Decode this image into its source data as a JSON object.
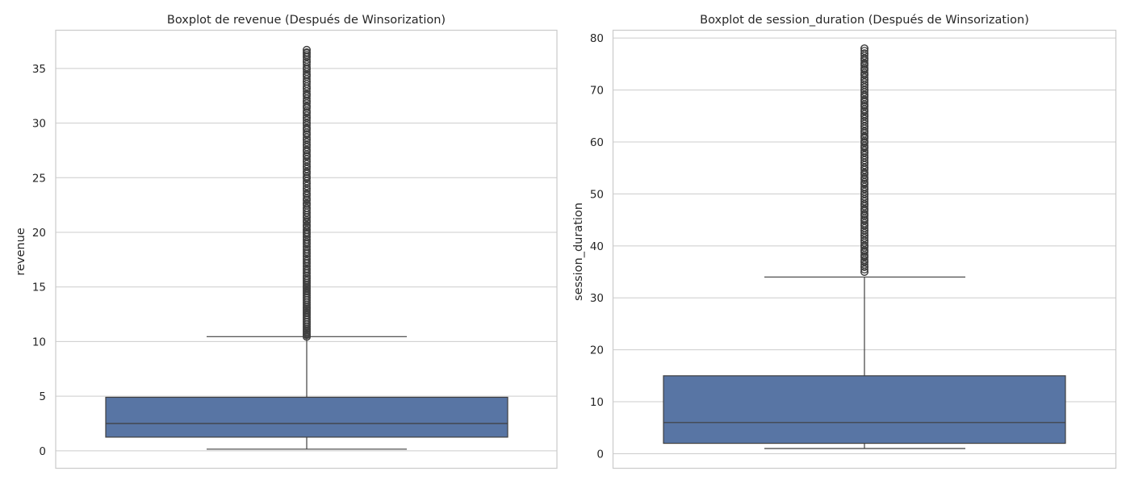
{
  "colors": {
    "box_fill": "#5875a4",
    "line": "#3f3f3f",
    "grid": "#cccccc"
  },
  "chart_data": [
    {
      "type": "boxplot",
      "title": "Boxplot de revenue (Después de Winsorization)",
      "xlabel": "",
      "ylabel": "revenue",
      "ylim": [
        -1.6,
        38.5
      ],
      "yticks": [
        0,
        5,
        10,
        15,
        20,
        25,
        30,
        35
      ],
      "grid": true,
      "box": {
        "whisker_low": 0.15,
        "q1": 1.25,
        "median": 2.5,
        "q3": 4.9,
        "whisker_high": 10.45
      },
      "outlier_range": [
        10.45,
        36.7
      ],
      "outliers": [
        10.45,
        10.6,
        10.8,
        11.0,
        11.2,
        11.4,
        11.6,
        11.8,
        12.0,
        12.2,
        12.4,
        12.6,
        12.8,
        13.0,
        13.2,
        13.4,
        13.6,
        13.8,
        14.0,
        14.2,
        14.4,
        14.6,
        14.8,
        15.0,
        15.2,
        15.4,
        15.6,
        15.8,
        16.0,
        16.3,
        16.6,
        16.9,
        17.2,
        17.5,
        17.8,
        18.1,
        18.4,
        18.7,
        19.0,
        19.3,
        19.6,
        19.9,
        20.2,
        20.6,
        21.0,
        21.4,
        21.8,
        22.2,
        22.6,
        23.0,
        23.5,
        24.0,
        24.5,
        25.0,
        25.5,
        26.0,
        26.5,
        27.0,
        27.5,
        28.0,
        28.5,
        29.0,
        29.5,
        30.0,
        30.5,
        31.0,
        31.5,
        32.0,
        32.6,
        33.2,
        33.8,
        34.4,
        35.0,
        35.6,
        36.1,
        36.4,
        36.7
      ]
    },
    {
      "type": "boxplot",
      "title": "Boxplot de session_duration (Después de Winsorization)",
      "xlabel": "",
      "ylabel": "session_duration",
      "ylim": [
        -2.8,
        81.5
      ],
      "yticks": [
        0,
        10,
        20,
        30,
        40,
        50,
        60,
        70,
        80
      ],
      "grid": true,
      "box": {
        "whisker_low": 1.0,
        "q1": 2.0,
        "median": 6.0,
        "q3": 15.0,
        "whisker_high": 34.0
      },
      "outlier_range": [
        35.0,
        78.0
      ],
      "outliers": [
        35,
        36,
        37,
        38,
        39,
        40,
        41,
        42,
        43,
        44,
        45,
        46,
        47,
        48,
        49,
        50,
        51,
        52,
        53,
        54,
        55,
        56,
        57,
        58,
        59,
        60,
        61,
        62,
        63,
        64,
        65,
        66,
        67,
        68,
        69,
        70,
        71,
        72,
        73,
        74,
        75,
        76,
        77,
        78
      ]
    }
  ]
}
